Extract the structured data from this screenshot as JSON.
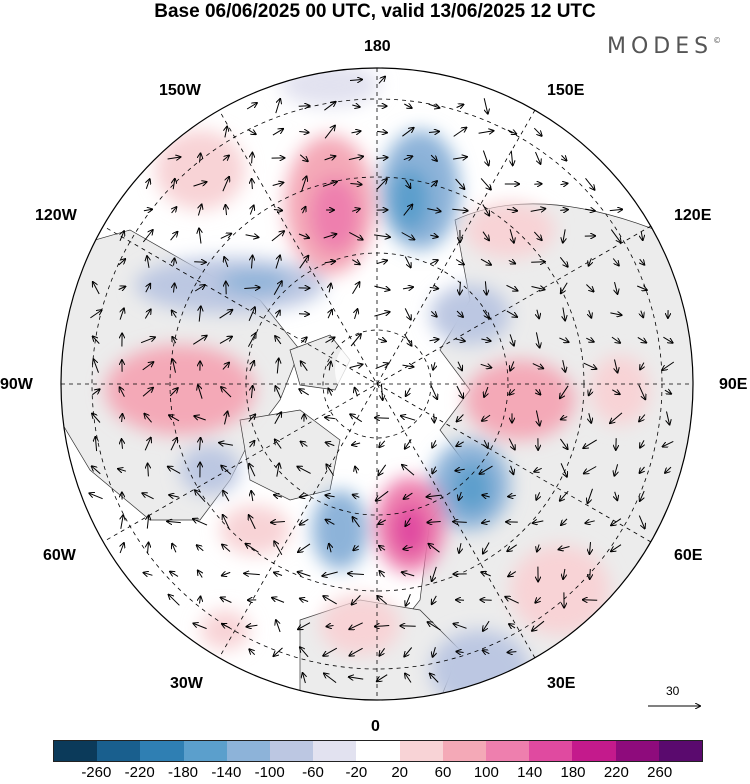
{
  "title": "Base 06/06/2025 00 UTC, valid 13/06/2025 12 UTC",
  "brand": "MODES",
  "brand_mark": "©",
  "longitude_labels": {
    "lon_180": "180",
    "lon_150e": "150E",
    "lon_120e": "120E",
    "lon_90e": "90E",
    "lon_60e": "60E",
    "lon_30e": "30E",
    "lon_0": "0",
    "lon_30w": "30W",
    "lon_60w": "60W",
    "lon_90w": "90W",
    "lon_120w": "120W",
    "lon_150w": "150W"
  },
  "reference_vector": {
    "value": "30"
  },
  "colorbar": {
    "ticks": [
      "-260",
      "-220",
      "-180",
      "-140",
      "-100",
      "-60",
      "-20",
      "20",
      "60",
      "100",
      "140",
      "180",
      "220",
      "260"
    ],
    "colors": [
      "#0b3a5a",
      "#195f8e",
      "#2f7fb3",
      "#5b9fcc",
      "#8db3d9",
      "#bcc7e2",
      "#e2e2f0",
      "#ffffff",
      "#f8d3d6",
      "#f4a9b7",
      "#ee7fae",
      "#e04aa0",
      "#c41a8c",
      "#8e0b7c",
      "#5a0a6e"
    ]
  },
  "colors": {
    "land": "#efefef",
    "grid": "#000000"
  }
}
